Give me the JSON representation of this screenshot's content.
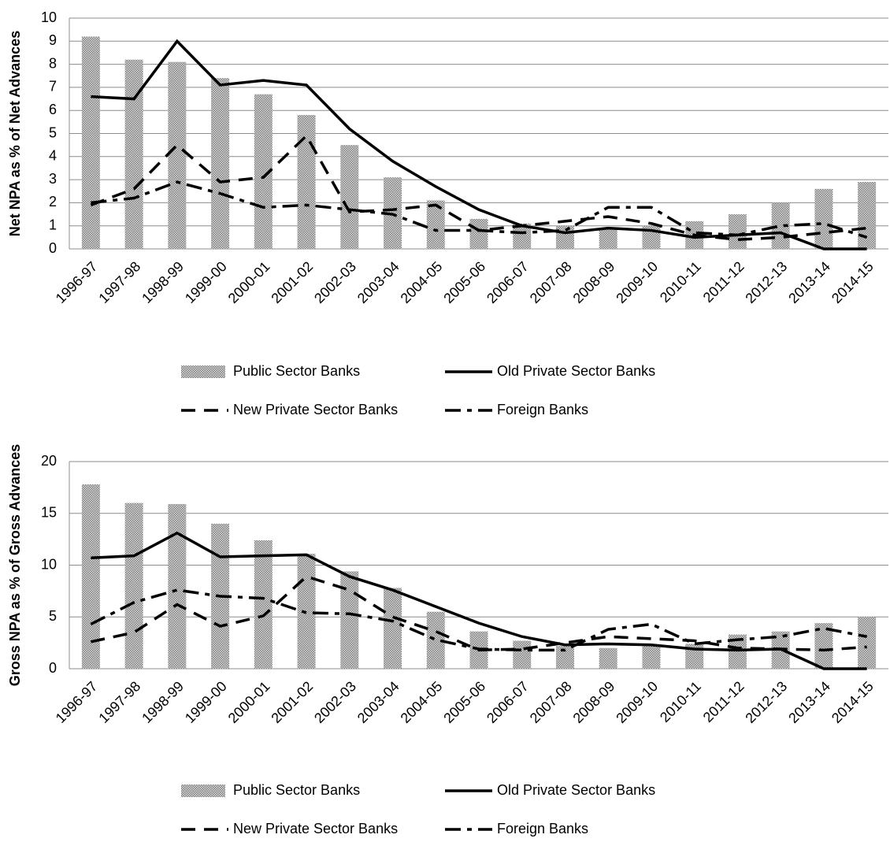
{
  "chart_data": [
    {
      "type": "combo",
      "y_label": "Net NPA as % of Net Advances",
      "categories": [
        "1996-97",
        "1997-98",
        "1998-99",
        "1999-00",
        "2000-01",
        "2001-02",
        "2002-03",
        "2003-04",
        "2004-05",
        "2005-06",
        "2006-07",
        "2007-08",
        "2008-09",
        "2009-10",
        "2010-11",
        "2011-12",
        "2012-13",
        "2013-14",
        "2014-15"
      ],
      "series": [
        {
          "name": "Public Sector Banks",
          "kind": "bar",
          "color": "#7f7f7f",
          "values": [
            9.2,
            8.2,
            8.1,
            7.4,
            6.7,
            5.8,
            4.5,
            3.1,
            2.1,
            1.3,
            1.1,
            1.0,
            0.9,
            1.0,
            1.2,
            1.5,
            2.0,
            2.6,
            2.9
          ]
        },
        {
          "name": "Old Private Sector Banks",
          "kind": "line",
          "dash": "solid",
          "color": "#000000",
          "values": [
            6.6,
            6.5,
            9.0,
            7.1,
            7.3,
            7.1,
            5.2,
            3.8,
            2.7,
            1.7,
            1.0,
            0.7,
            0.9,
            0.8,
            0.5,
            0.6,
            0.7,
            0.0,
            0.0
          ]
        },
        {
          "name": "New Private Sector Banks",
          "kind": "line",
          "dash": "dashed",
          "color": "#000000",
          "values": [
            1.9,
            2.6,
            4.5,
            2.9,
            3.1,
            4.9,
            1.6,
            1.7,
            1.9,
            0.8,
            1.0,
            1.2,
            1.4,
            1.1,
            0.6,
            0.4,
            0.5,
            0.7,
            0.9
          ]
        },
        {
          "name": "Foreign Banks",
          "kind": "line",
          "dash": "dashdot",
          "color": "#000000",
          "values": [
            2.0,
            2.2,
            2.9,
            2.4,
            1.8,
            1.9,
            1.7,
            1.5,
            0.8,
            0.8,
            0.7,
            0.8,
            1.8,
            1.8,
            0.7,
            0.6,
            1.0,
            1.1,
            0.5
          ]
        }
      ],
      "ylim": [
        0,
        10
      ],
      "yticks": [
        0,
        1,
        2,
        3,
        4,
        5,
        6,
        7,
        8,
        9,
        10
      ],
      "grid": true
    },
    {
      "type": "combo",
      "y_label": "Gross NPA as % of Gross Advances",
      "categories": [
        "1996-97",
        "1997-98",
        "1998-99",
        "1999-00",
        "2000-01",
        "2001-02",
        "2002-03",
        "2003-04",
        "2004-05",
        "2005-06",
        "2006-07",
        "2007-08",
        "2008-09",
        "2009-10",
        "2010-11",
        "2011-12",
        "2012-13",
        "2013-14",
        "2014-15"
      ],
      "series": [
        {
          "name": "Public Sector Banks",
          "kind": "bar",
          "color": "#7f7f7f",
          "values": [
            17.8,
            16.0,
            15.9,
            14.0,
            12.4,
            11.1,
            9.4,
            7.8,
            5.5,
            3.6,
            2.7,
            2.2,
            2.0,
            2.2,
            2.4,
            3.3,
            3.6,
            4.4,
            5.0
          ]
        },
        {
          "name": "Old Private Sector Banks",
          "kind": "line",
          "dash": "solid",
          "color": "#000000",
          "values": [
            10.7,
            10.9,
            13.1,
            10.8,
            10.9,
            11.0,
            8.9,
            7.6,
            6.0,
            4.4,
            3.1,
            2.3,
            2.4,
            2.3,
            1.9,
            1.8,
            1.9,
            0.0,
            0.0
          ]
        },
        {
          "name": "New Private Sector Banks",
          "kind": "line",
          "dash": "dashed",
          "color": "#000000",
          "values": [
            2.6,
            3.5,
            6.2,
            4.1,
            5.1,
            8.9,
            7.6,
            5.0,
            3.6,
            1.8,
            1.9,
            2.5,
            3.1,
            2.9,
            2.7,
            2.0,
            1.9,
            1.8,
            2.1
          ]
        },
        {
          "name": "Foreign Banks",
          "kind": "line",
          "dash": "dashdot",
          "color": "#000000",
          "values": [
            4.3,
            6.4,
            7.6,
            7.0,
            6.8,
            5.4,
            5.3,
            4.6,
            2.8,
            1.9,
            1.8,
            1.8,
            3.8,
            4.3,
            2.4,
            2.8,
            3.1,
            3.9,
            3.1
          ]
        }
      ],
      "ylim": [
        0,
        20
      ],
      "yticks": [
        0,
        5,
        10,
        15,
        20
      ],
      "grid": true
    }
  ]
}
